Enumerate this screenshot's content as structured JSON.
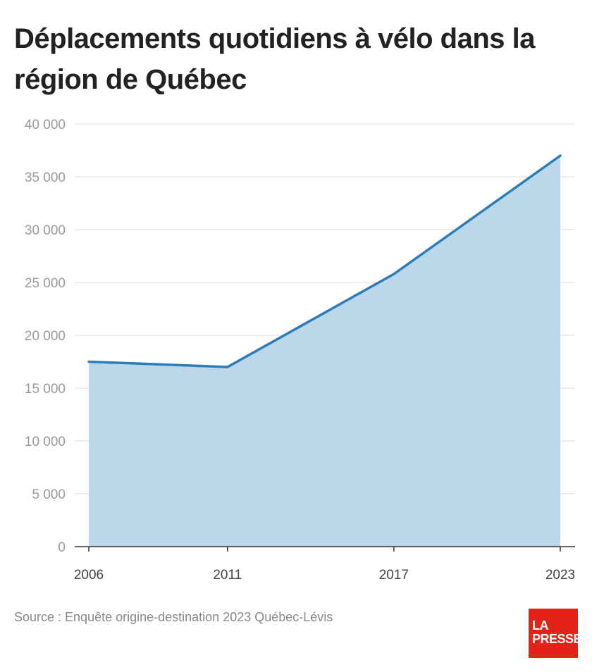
{
  "title": "Déplacements quotidiens à vélo dans la région de Québec",
  "source": "Source : Enquête origine-destination 2023 Québec-Lévis",
  "logo": {
    "line1": "LA",
    "line2": "PRESSE",
    "color": "#e2231a"
  },
  "chart_data": {
    "type": "area",
    "x": [
      "2006",
      "2011",
      "2017",
      "2023"
    ],
    "x_numeric": [
      2006,
      2011,
      2017,
      2023
    ],
    "values": [
      17500,
      17000,
      25800,
      37000
    ],
    "ylim": [
      0,
      40000
    ],
    "yticks": [
      0,
      5000,
      10000,
      15000,
      20000,
      25000,
      30000,
      35000,
      40000
    ],
    "ytick_labels": [
      "0",
      "5 000",
      "10 000",
      "15 000",
      "20 000",
      "25 000",
      "30 000",
      "35 000",
      "40 000"
    ],
    "grid": true,
    "line_color": "#2a7db8",
    "fill_color": "#bcd7e9"
  }
}
